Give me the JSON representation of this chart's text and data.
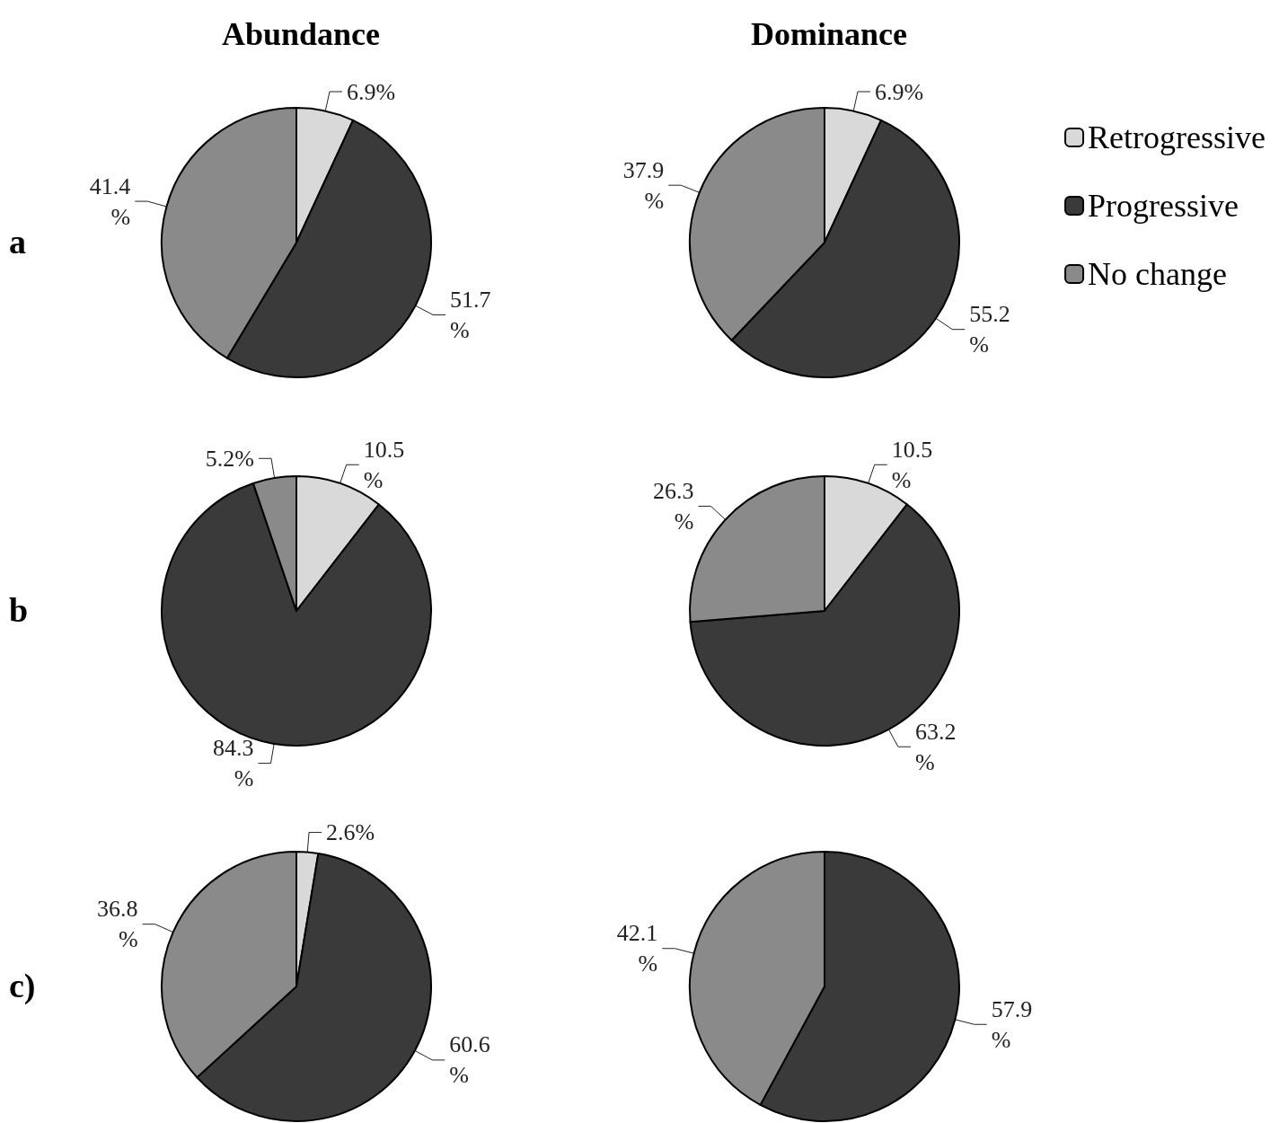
{
  "chart_data": [
    {
      "type": "pie",
      "title": "Abundance",
      "annotations": [
        "a"
      ],
      "categories": [
        null,
        null,
        null
      ],
      "values": [
        6.9,
        51.7,
        41.4
      ],
      "colors": [
        "#d9d9d9",
        "#3a3a3a",
        "#8a8a8a"
      ],
      "value_labels": [
        "6.9%",
        "51.7\n%",
        "41.4\n%"
      ]
    },
    {
      "type": "pie",
      "title": "Dominance",
      "legend": "right",
      "categories": [
        "Retrogressive",
        "Progressive",
        "No change"
      ],
      "values": [
        6.9,
        55.2,
        37.9
      ],
      "colors": [
        "#d9d9d9",
        "#3a3a3a",
        "#8a8a8a"
      ],
      "value_labels": [
        "6.9%",
        "55.2\n%",
        "37.9\n%"
      ]
    },
    {
      "type": "pie",
      "annotations": [
        "b"
      ],
      "categories": [
        null,
        null,
        null
      ],
      "values": [
        10.5,
        84.3,
        5.2
      ],
      "colors": [
        "#d9d9d9",
        "#3a3a3a",
        "#8a8a8a"
      ],
      "value_labels": [
        "10.5\n%",
        "84.3\n%",
        "5.2%"
      ]
    },
    {
      "type": "pie",
      "categories": [
        null,
        null,
        null
      ],
      "values": [
        10.5,
        63.2,
        26.3
      ],
      "colors": [
        "#d9d9d9",
        "#3a3a3a",
        "#8a8a8a"
      ],
      "value_labels": [
        "10.5\n%",
        "63.2\n%",
        "26.3\n%"
      ]
    },
    {
      "type": "pie",
      "annotations": [
        "c)"
      ],
      "categories": [
        null,
        null,
        null
      ],
      "values": [
        2.6,
        60.6,
        36.8
      ],
      "colors": [
        "#d9d9d9",
        "#3a3a3a",
        "#8a8a8a"
      ],
      "value_labels": [
        "2.6%",
        "60.6\n%",
        "36.8\n%"
      ]
    },
    {
      "type": "pie",
      "categories": [
        null,
        null
      ],
      "values": [
        57.9,
        42.1
      ],
      "colors": [
        "#3a3a3a",
        "#8a8a8a"
      ],
      "value_labels": [
        "57.9\n%",
        "42.1\n%"
      ]
    }
  ]
}
